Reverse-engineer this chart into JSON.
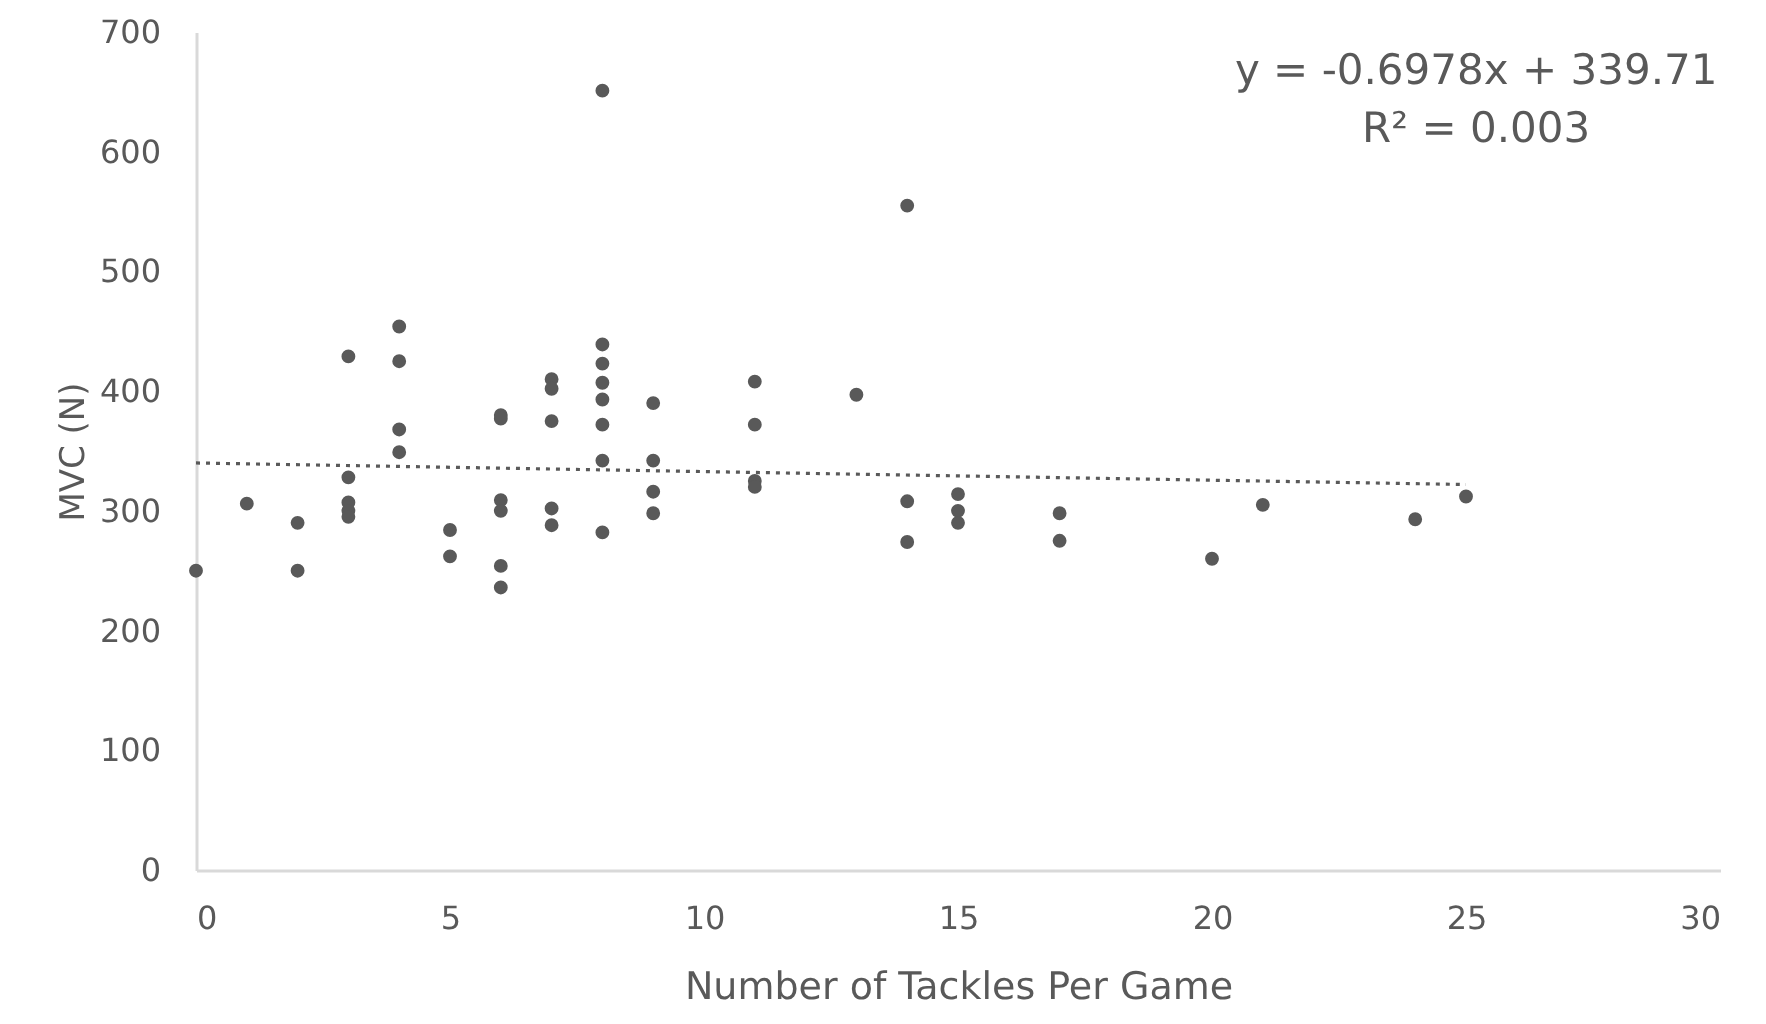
{
  "chart_data": {
    "type": "scatter",
    "xlabel": "Number of Tackles Per Game",
    "ylabel": "MVC (N)",
    "annotations": [
      "y = -0.6978x + 339.71",
      "R² = 0.003"
    ],
    "xlim": [
      0,
      30
    ],
    "xticks": [
      0,
      5,
      10,
      15,
      20,
      25,
      30
    ],
    "ylim": [
      0,
      700
    ],
    "yticks": [
      0,
      100,
      200,
      300,
      400,
      500,
      600,
      700
    ],
    "series": [
      {
        "color": "#595959",
        "marker": "circle",
        "x": [
          0,
          1,
          2,
          2,
          3,
          3,
          3,
          3,
          3,
          4,
          4,
          4,
          4,
          5,
          5,
          6,
          6,
          6,
          6,
          6,
          6,
          7,
          7,
          7,
          7,
          7,
          8,
          8,
          8,
          8,
          8,
          8,
          8,
          8,
          9,
          9,
          9,
          9,
          11,
          11,
          11,
          11,
          13,
          14,
          14,
          14,
          15,
          15,
          15,
          17,
          17,
          20,
          21,
          24,
          25
        ],
        "values": [
          250,
          306,
          290,
          250,
          429,
          328,
          307,
          300,
          295,
          454,
          425,
          368,
          349,
          284,
          262,
          380,
          377,
          309,
          300,
          254,
          236,
          410,
          402,
          375,
          302,
          288,
          651,
          439,
          423,
          407,
          393,
          372,
          342,
          282,
          390,
          342,
          316,
          298,
          408,
          372,
          325,
          320,
          397,
          555,
          308,
          274,
          314,
          300,
          290,
          298,
          275,
          260,
          305,
          293,
          312
        ]
      },
      {
        "type": "line",
        "color": "#595959",
        "line_style": "dotted",
        "x": [
          0,
          25
        ],
        "values": [
          340,
          322
        ]
      }
    ]
  }
}
